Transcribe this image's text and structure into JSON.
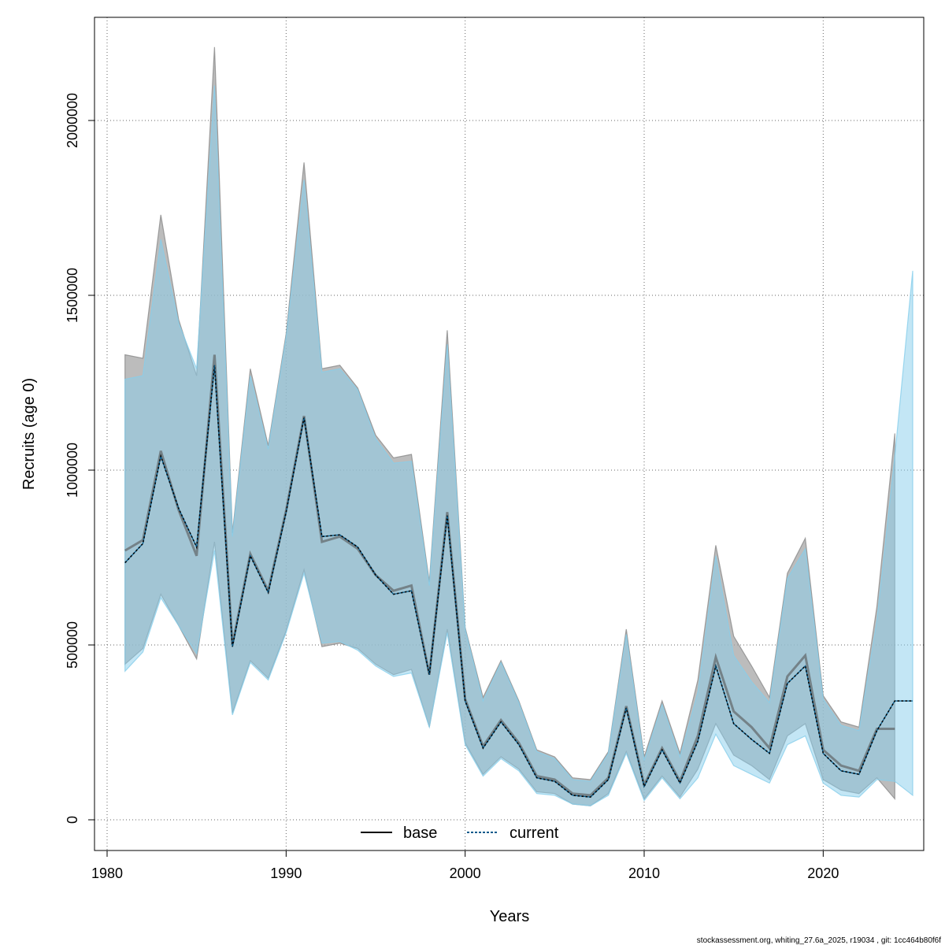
{
  "chart_data": {
    "type": "line",
    "xlabel": "Years",
    "ylabel": "Recruits (age 0)",
    "xlim": [
      1980,
      2025
    ],
    "ylim": [
      0,
      2200000
    ],
    "x_ticks": [
      1980,
      1990,
      2000,
      2010,
      2020
    ],
    "y_ticks": [
      0,
      500000,
      1000000,
      1500000,
      2000000
    ],
    "x_tick_labels": [
      "1980",
      "1990",
      "2000",
      "2010",
      "2020"
    ],
    "y_tick_labels": [
      "0",
      "500000",
      "1000000",
      "1500000",
      "2000000"
    ],
    "grid": true,
    "legend_position": "bottom-center",
    "series": [
      {
        "name": "base",
        "color": "#000000",
        "band_color": "#a0a0a0",
        "line_style": "solid",
        "x": [
          1981,
          1982,
          1983,
          1984,
          1985,
          1986,
          1987,
          1988,
          1989,
          1990,
          1991,
          1992,
          1993,
          1994,
          1995,
          1996,
          1997,
          1998,
          1999,
          2000,
          2001,
          2002,
          2003,
          2004,
          2005,
          2006,
          2007,
          2008,
          2009,
          2010,
          2011,
          2012,
          2013,
          2014,
          2015,
          2016,
          2017,
          2018,
          2019,
          2020,
          2021,
          2022,
          2023,
          2024
        ],
        "values": [
          770000,
          800000,
          1055000,
          885000,
          755000,
          1330000,
          500000,
          760000,
          655000,
          885000,
          1155000,
          795000,
          810000,
          775000,
          700000,
          655000,
          670000,
          415000,
          880000,
          345000,
          210000,
          285000,
          220000,
          125000,
          115000,
          75000,
          70000,
          120000,
          325000,
          100000,
          205000,
          110000,
          240000,
          465000,
          310000,
          265000,
          205000,
          410000,
          470000,
          200000,
          155000,
          140000,
          260000,
          260000
        ],
        "lower": [
          445000,
          490000,
          645000,
          555000,
          460000,
          795000,
          305000,
          455000,
          405000,
          540000,
          715000,
          495000,
          505000,
          490000,
          445000,
          415000,
          430000,
          265000,
          545000,
          220000,
          130000,
          180000,
          145000,
          80000,
          75000,
          45000,
          40000,
          75000,
          195000,
          60000,
          125000,
          65000,
          145000,
          275000,
          185000,
          155000,
          115000,
          240000,
          275000,
          115000,
          85000,
          75000,
          120000,
          60000
        ],
        "upper": [
          1330000,
          1320000,
          1730000,
          1430000,
          1270000,
          2210000,
          820000,
          1290000,
          1070000,
          1390000,
          1880000,
          1290000,
          1300000,
          1235000,
          1100000,
          1035000,
          1045000,
          680000,
          1400000,
          550000,
          350000,
          455000,
          340000,
          200000,
          180000,
          120000,
          115000,
          195000,
          545000,
          180000,
          340000,
          190000,
          400000,
          785000,
          525000,
          440000,
          350000,
          705000,
          805000,
          355000,
          280000,
          265000,
          610000,
          1105000
        ]
      },
      {
        "name": "current",
        "color": "#005a8c",
        "band_color": "#87ceeb",
        "line_style": "dashed",
        "x": [
          1981,
          1982,
          1983,
          1984,
          1985,
          1986,
          1987,
          1988,
          1989,
          1990,
          1991,
          1992,
          1993,
          1994,
          1995,
          1996,
          1997,
          1998,
          1999,
          2000,
          2001,
          2002,
          2003,
          2004,
          2005,
          2006,
          2007,
          2008,
          2009,
          2010,
          2011,
          2012,
          2013,
          2014,
          2015,
          2016,
          2017,
          2018,
          2019,
          2020,
          2021,
          2022,
          2023,
          2024,
          2025
        ],
        "values": [
          735000,
          790000,
          1040000,
          890000,
          780000,
          1300000,
          495000,
          755000,
          650000,
          880000,
          1150000,
          810000,
          815000,
          780000,
          700000,
          645000,
          655000,
          415000,
          870000,
          340000,
          205000,
          280000,
          215000,
          120000,
          110000,
          70000,
          65000,
          115000,
          320000,
          95000,
          200000,
          105000,
          225000,
          440000,
          275000,
          230000,
          190000,
          390000,
          440000,
          190000,
          140000,
          130000,
          255000,
          340000,
          340000
        ],
        "lower": [
          425000,
          480000,
          635000,
          555000,
          475000,
          770000,
          300000,
          450000,
          400000,
          535000,
          705000,
          505000,
          510000,
          485000,
          440000,
          410000,
          420000,
          265000,
          535000,
          215000,
          125000,
          175000,
          140000,
          75000,
          70000,
          45000,
          40000,
          70000,
          190000,
          55000,
          120000,
          60000,
          120000,
          245000,
          155000,
          130000,
          105000,
          215000,
          240000,
          105000,
          70000,
          65000,
          115000,
          110000,
          70000
        ],
        "upper": [
          1260000,
          1270000,
          1660000,
          1420000,
          1290000,
          2100000,
          810000,
          1270000,
          1060000,
          1380000,
          1830000,
          1280000,
          1290000,
          1230000,
          1090000,
          1020000,
          1025000,
          670000,
          1360000,
          545000,
          340000,
          450000,
          335000,
          195000,
          175000,
          115000,
          110000,
          190000,
          530000,
          170000,
          330000,
          180000,
          365000,
          755000,
          470000,
          395000,
          335000,
          690000,
          775000,
          345000,
          270000,
          255000,
          570000,
          1040000,
          1570000
        ]
      }
    ]
  },
  "footer": "stockassessment.org, whiting_27.6a_2025, r19034 , git: 1cc464b80f6f"
}
